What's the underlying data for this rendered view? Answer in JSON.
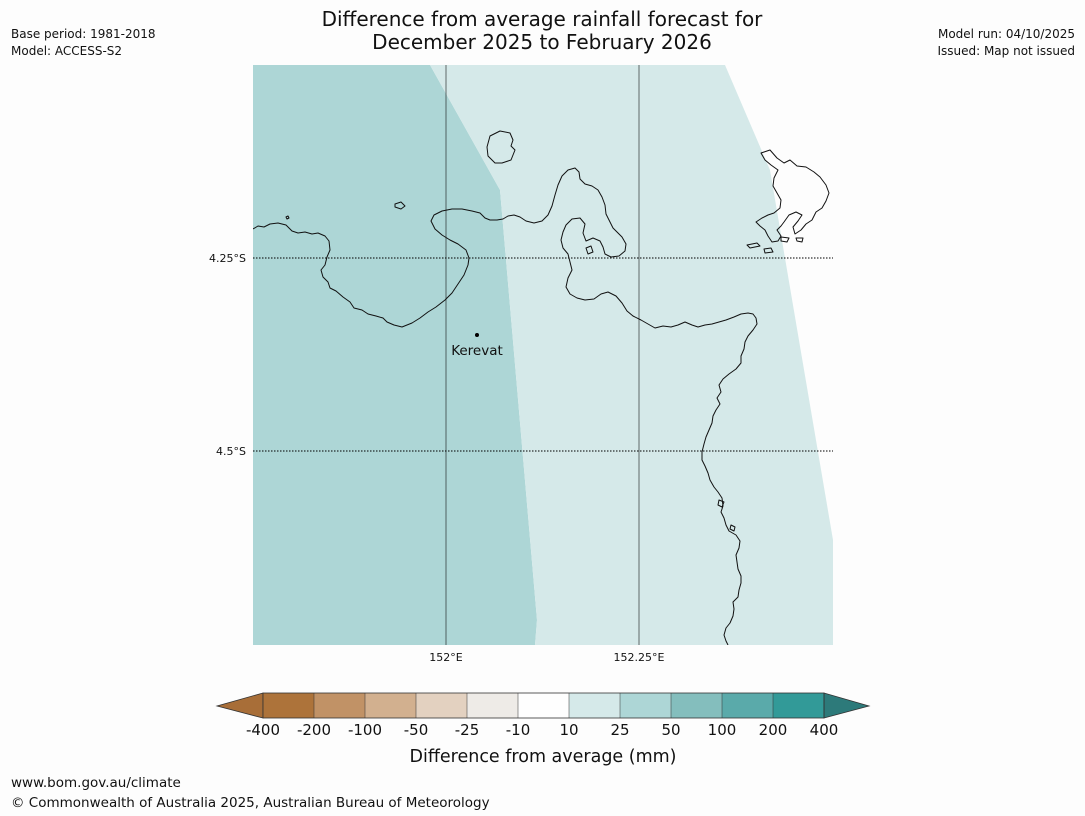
{
  "header": {
    "title_line1": "Difference from average rainfall forecast for",
    "title_line2": "December 2025 to February 2026",
    "base_period": "Base period: 1981-2018",
    "model": "Model: ACCESS-S2",
    "model_run": "Model run: 04/10/2025",
    "issued": "Issued: Map not issued"
  },
  "map": {
    "lat_labels": [
      "4.25°S",
      "4.5°S"
    ],
    "lon_labels": [
      "152°E",
      "152.25°E"
    ],
    "places": [
      {
        "name": "Kerevat"
      }
    ],
    "zones": [
      {
        "category": "25 to 50",
        "color": "#add6d6"
      },
      {
        "category": "10 to 25",
        "color": "#d5e9e9"
      }
    ],
    "coastline_color": "#000000",
    "graticule_color": "#000000"
  },
  "legend": {
    "title": "Difference from average (mm)",
    "tick_labels": [
      "-400",
      "-200",
      "-100",
      "-50",
      "-25",
      "-10",
      "10",
      "25",
      "50",
      "100",
      "200",
      "400"
    ],
    "colors": [
      "#a86e38",
      "#ad733a",
      "#c19266",
      "#d2b08f",
      "#e3d1c0",
      "#eeebe7",
      "#fefefe",
      "#d5e9e9",
      "#add6d6",
      "#84bebd",
      "#5aaaaa",
      "#329a98",
      "#2d7a7a"
    ]
  },
  "footer": {
    "url": "www.bom.gov.au/climate",
    "copyright": "© Commonwealth of Australia 2025, Australian Bureau of Meteorology"
  }
}
